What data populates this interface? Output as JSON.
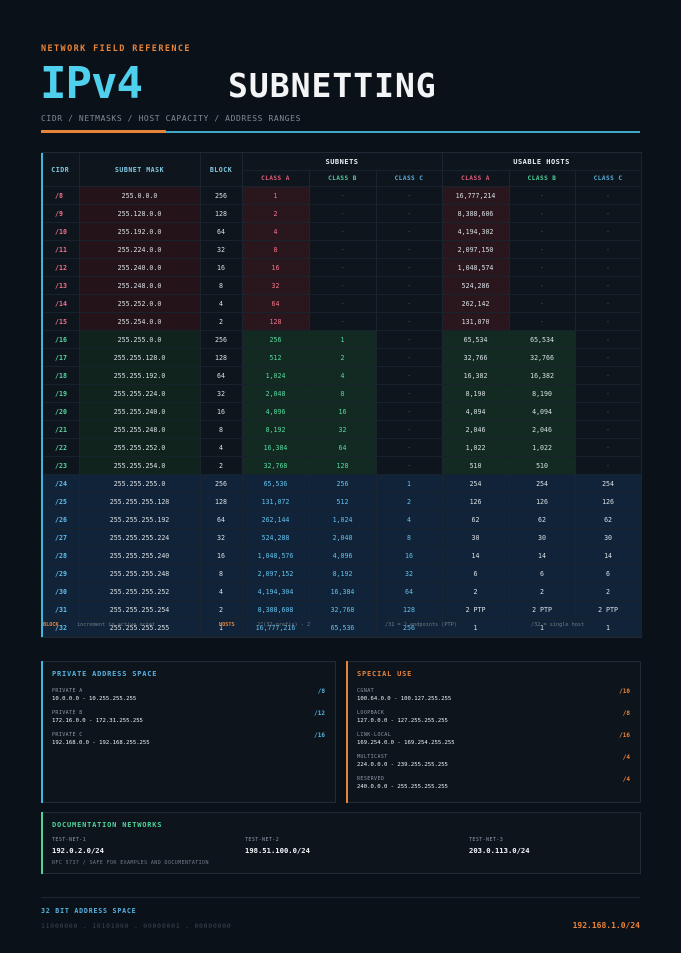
{
  "header": {
    "kicker": "NETWORK FIELD REFERENCE",
    "title_a": "IPv4",
    "title_b": "SUBNETTING",
    "subtitle": "CIDR / NETMASKS / HOST CAPACITY / ADDRESS RANGES"
  },
  "table": {
    "headers": {
      "cidr": "CIDR",
      "mask": "SUBNET MASK",
      "block": "BLOCK",
      "subnets": "SUBNETS",
      "usable": "USABLE HOSTS",
      "class_a": "CLASS A",
      "class_b": "CLASS B",
      "class_c": "CLASS C"
    },
    "rows": [
      {
        "g": "a",
        "cidr": "/8",
        "mask": "255.0.0.0",
        "block": "256",
        "sa": "1",
        "sb": "-",
        "sc": "-",
        "ua": "16,777,214",
        "ub": "-",
        "uc": "-"
      },
      {
        "g": "a",
        "cidr": "/9",
        "mask": "255.128.0.0",
        "block": "128",
        "sa": "2",
        "sb": "-",
        "sc": "-",
        "ua": "8,388,606",
        "ub": "-",
        "uc": "-"
      },
      {
        "g": "a",
        "cidr": "/10",
        "mask": "255.192.0.0",
        "block": "64",
        "sa": "4",
        "sb": "-",
        "sc": "-",
        "ua": "4,194,302",
        "ub": "-",
        "uc": "-"
      },
      {
        "g": "a",
        "cidr": "/11",
        "mask": "255.224.0.0",
        "block": "32",
        "sa": "8",
        "sb": "-",
        "sc": "-",
        "ua": "2,097,150",
        "ub": "-",
        "uc": "-"
      },
      {
        "g": "a",
        "cidr": "/12",
        "mask": "255.240.0.0",
        "block": "16",
        "sa": "16",
        "sb": "-",
        "sc": "-",
        "ua": "1,048,574",
        "ub": "-",
        "uc": "-"
      },
      {
        "g": "a",
        "cidr": "/13",
        "mask": "255.248.0.0",
        "block": "8",
        "sa": "32",
        "sb": "-",
        "sc": "-",
        "ua": "524,286",
        "ub": "-",
        "uc": "-"
      },
      {
        "g": "a",
        "cidr": "/14",
        "mask": "255.252.0.0",
        "block": "4",
        "sa": "64",
        "sb": "-",
        "sc": "-",
        "ua": "262,142",
        "ub": "-",
        "uc": "-"
      },
      {
        "g": "a",
        "cidr": "/15",
        "mask": "255.254.0.0",
        "block": "2",
        "sa": "128",
        "sb": "-",
        "sc": "-",
        "ua": "131,070",
        "ub": "-",
        "uc": "-"
      },
      {
        "g": "b",
        "cidr": "/16",
        "mask": "255.255.0.0",
        "block": "256",
        "sa": "256",
        "sb": "1",
        "sc": "-",
        "ua": "65,534",
        "ub": "65,534",
        "uc": "-"
      },
      {
        "g": "b",
        "cidr": "/17",
        "mask": "255.255.128.0",
        "block": "128",
        "sa": "512",
        "sb": "2",
        "sc": "-",
        "ua": "32,766",
        "ub": "32,766",
        "uc": "-"
      },
      {
        "g": "b",
        "cidr": "/18",
        "mask": "255.255.192.0",
        "block": "64",
        "sa": "1,024",
        "sb": "4",
        "sc": "-",
        "ua": "16,382",
        "ub": "16,382",
        "uc": "-"
      },
      {
        "g": "b",
        "cidr": "/19",
        "mask": "255.255.224.0",
        "block": "32",
        "sa": "2,048",
        "sb": "8",
        "sc": "-",
        "ua": "8,190",
        "ub": "8,190",
        "uc": "-"
      },
      {
        "g": "b",
        "cidr": "/20",
        "mask": "255.255.240.0",
        "block": "16",
        "sa": "4,096",
        "sb": "16",
        "sc": "-",
        "ua": "4,094",
        "ub": "4,094",
        "uc": "-"
      },
      {
        "g": "b",
        "cidr": "/21",
        "mask": "255.255.248.0",
        "block": "8",
        "sa": "8,192",
        "sb": "32",
        "sc": "-",
        "ua": "2,046",
        "ub": "2,046",
        "uc": "-"
      },
      {
        "g": "b",
        "cidr": "/22",
        "mask": "255.255.252.0",
        "block": "4",
        "sa": "16,384",
        "sb": "64",
        "sc": "-",
        "ua": "1,022",
        "ub": "1,022",
        "uc": "-"
      },
      {
        "g": "b",
        "cidr": "/23",
        "mask": "255.255.254.0",
        "block": "2",
        "sa": "32,768",
        "sb": "128",
        "sc": "-",
        "ua": "510",
        "ub": "510",
        "uc": "-"
      },
      {
        "g": "c",
        "cidr": "/24",
        "mask": "255.255.255.0",
        "block": "256",
        "sa": "65,536",
        "sb": "256",
        "sc": "1",
        "ua": "254",
        "ub": "254",
        "uc": "254"
      },
      {
        "g": "c",
        "cidr": "/25",
        "mask": "255.255.255.128",
        "block": "128",
        "sa": "131,072",
        "sb": "512",
        "sc": "2",
        "ua": "126",
        "ub": "126",
        "uc": "126"
      },
      {
        "g": "c",
        "cidr": "/26",
        "mask": "255.255.255.192",
        "block": "64",
        "sa": "262,144",
        "sb": "1,024",
        "sc": "4",
        "ua": "62",
        "ub": "62",
        "uc": "62"
      },
      {
        "g": "c",
        "cidr": "/27",
        "mask": "255.255.255.224",
        "block": "32",
        "sa": "524,288",
        "sb": "2,048",
        "sc": "8",
        "ua": "30",
        "ub": "30",
        "uc": "30"
      },
      {
        "g": "c",
        "cidr": "/28",
        "mask": "255.255.255.240",
        "block": "16",
        "sa": "1,048,576",
        "sb": "4,096",
        "sc": "16",
        "ua": "14",
        "ub": "14",
        "uc": "14"
      },
      {
        "g": "c",
        "cidr": "/29",
        "mask": "255.255.255.248",
        "block": "8",
        "sa": "2,097,152",
        "sb": "8,192",
        "sc": "32",
        "ua": "6",
        "ub": "6",
        "uc": "6"
      },
      {
        "g": "c",
        "cidr": "/30",
        "mask": "255.255.255.252",
        "block": "4",
        "sa": "4,194,304",
        "sb": "16,384",
        "sc": "64",
        "ua": "2",
        "ub": "2",
        "uc": "2"
      },
      {
        "g": "c",
        "cidr": "/31",
        "mask": "255.255.255.254",
        "block": "2",
        "sa": "8,388,608",
        "sb": "32,768",
        "sc": "128",
        "ua": "2 PTP",
        "ub": "2 PTP",
        "uc": "2 PTP"
      },
      {
        "g": "c",
        "cidr": "/32",
        "mask": "255.255.255.255",
        "block": "1",
        "sa": "16,777,216",
        "sb": "65,536",
        "sc": "256",
        "ua": "1",
        "ub": "1",
        "uc": "1"
      }
    ],
    "legend": {
      "block_key": "BLOCK",
      "block_text": "increment in active octet",
      "hosts_key": "HOSTS",
      "hosts_text": "2^(32-prefix) - 2",
      "ptp_text": "/31 = 2 endpoints (PTP)",
      "single_text": "/32 = single host"
    }
  },
  "private": {
    "title": "PRIVATE ADDRESS SPACE",
    "items": [
      {
        "label": "PRIVATE A",
        "range": "10.0.0.0 - 10.255.255.255",
        "prefix": "/8"
      },
      {
        "label": "PRIVATE B",
        "range": "172.16.0.0 - 172.31.255.255",
        "prefix": "/12"
      },
      {
        "label": "PRIVATE C",
        "range": "192.168.0.0 - 192.168.255.255",
        "prefix": "/16"
      }
    ]
  },
  "special": {
    "title": "SPECIAL USE",
    "items": [
      {
        "label": "CGNAT",
        "range": "100.64.0.0 - 100.127.255.255",
        "prefix": "/10"
      },
      {
        "label": "LOOPBACK",
        "range": "127.0.0.0 - 127.255.255.255",
        "prefix": "/8"
      },
      {
        "label": "LINK-LOCAL",
        "range": "169.254.0.0 - 169.254.255.255",
        "prefix": "/16"
      },
      {
        "label": "MULTICAST",
        "range": "224.0.0.0 - 239.255.255.255",
        "prefix": "/4"
      },
      {
        "label": "RESERVED",
        "range": "240.0.0.0 - 255.255.255.255",
        "prefix": "/4"
      }
    ]
  },
  "docs": {
    "title": "DOCUMENTATION NETWORKS",
    "nets": [
      {
        "label": "TEST-NET-1",
        "value": "192.0.2.0/24"
      },
      {
        "label": "TEST-NET-2",
        "value": "198.51.100.0/24"
      },
      {
        "label": "TEST-NET-3",
        "value": "203.0.113.0/24"
      }
    ],
    "note": "RFC 5737 / SAFE FOR EXAMPLES AND DOCUMENTATION"
  },
  "footer": {
    "title": "32 BIT ADDRESS SPACE",
    "binary": "11000000 . 10101000 . 00000001 . 00000000",
    "ip": "192.168.1.0/24"
  },
  "colors": {
    "accent": "#e8833a",
    "cyan": "#4fd1ee",
    "class_a": "#e4607a",
    "class_b": "#4fd39a",
    "class_c": "#56b3e0"
  }
}
